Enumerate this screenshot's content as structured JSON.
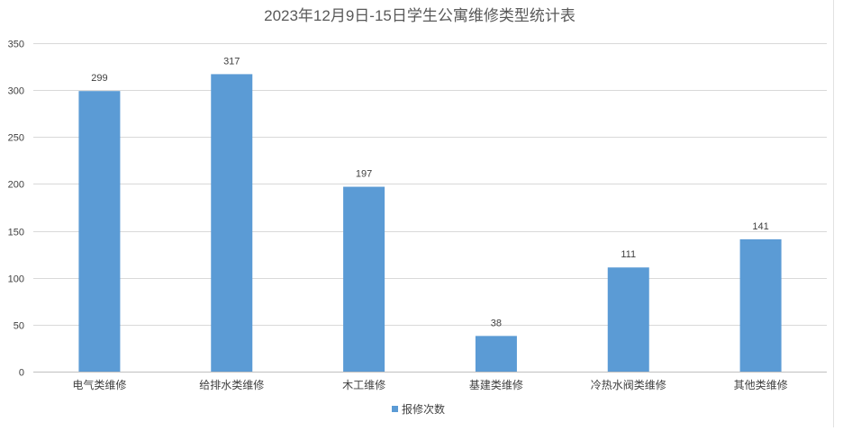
{
  "chart_data": {
    "type": "bar",
    "title": "2023年12月9日-15日学生公寓维修类型统计表",
    "categories": [
      "电气类维修",
      "给排水类维修",
      "木工维修",
      "基建类维修",
      "冷热水阀类维修",
      "其他类维修"
    ],
    "series": [
      {
        "name": "报修次数",
        "values": [
          299,
          317,
          197,
          38,
          111,
          141
        ]
      }
    ],
    "ylim": [
      0,
      350
    ],
    "yticks": [
      0,
      50,
      100,
      150,
      200,
      250,
      300,
      350
    ],
    "grid": true,
    "legend_position": "bottom",
    "data_labels": true,
    "colors": {
      "bar": "#5b9bd5",
      "grid": "#d9d9d9",
      "text": "#404040",
      "title": "#595959"
    }
  }
}
